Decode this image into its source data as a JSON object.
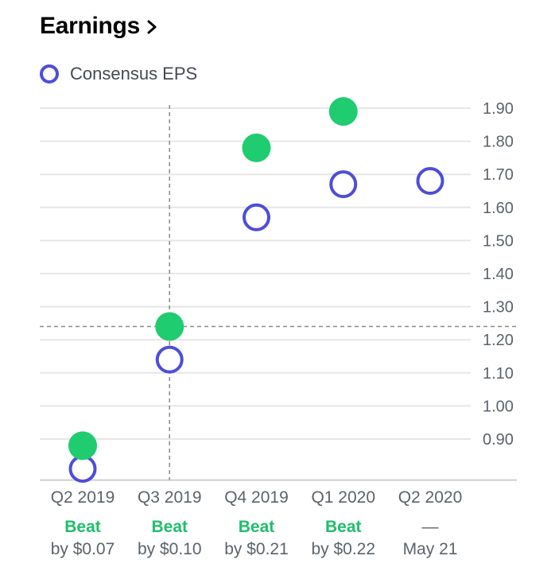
{
  "header": {
    "title": "Earnings"
  },
  "legend": {
    "label": "Consensus EPS"
  },
  "colors": {
    "actual": "#1fcc6f",
    "estimate": "#4d4ed8",
    "beat": "#1ebf6a",
    "grid": "#e6e6e6",
    "text": "#5c636b"
  },
  "icons": {
    "header_chevron": "chevron-right-icon"
  },
  "chart_data": {
    "type": "scatter",
    "title": "Earnings",
    "categories": [
      "Q2 2019",
      "Q3 2019",
      "Q4 2019",
      "Q1 2020",
      "Q2 2020"
    ],
    "ylim": [
      0.8,
      1.92
    ],
    "yticks": [
      "0.90",
      "1.00",
      "1.10",
      "1.20",
      "1.30",
      "1.40",
      "1.50",
      "1.60",
      "1.70",
      "1.80",
      "1.90"
    ],
    "grid": true,
    "legend_position": "top-left",
    "series": [
      {
        "name": "Consensus EPS",
        "style": "hollow",
        "values": [
          0.81,
          1.14,
          1.57,
          1.67,
          1.68
        ]
      },
      {
        "style": "filled",
        "values": [
          0.88,
          1.24,
          1.78,
          1.89,
          null
        ]
      }
    ],
    "crosshair": {
      "category_index": 1,
      "value": 1.24
    },
    "results": [
      {
        "status": "Beat",
        "detail": "by $0.07"
      },
      {
        "status": "Beat",
        "detail": "by $0.10"
      },
      {
        "status": "Beat",
        "detail": "by $0.21"
      },
      {
        "status": "Beat",
        "detail": "by $0.22"
      },
      {
        "status": "—",
        "detail": "May 21"
      }
    ]
  }
}
